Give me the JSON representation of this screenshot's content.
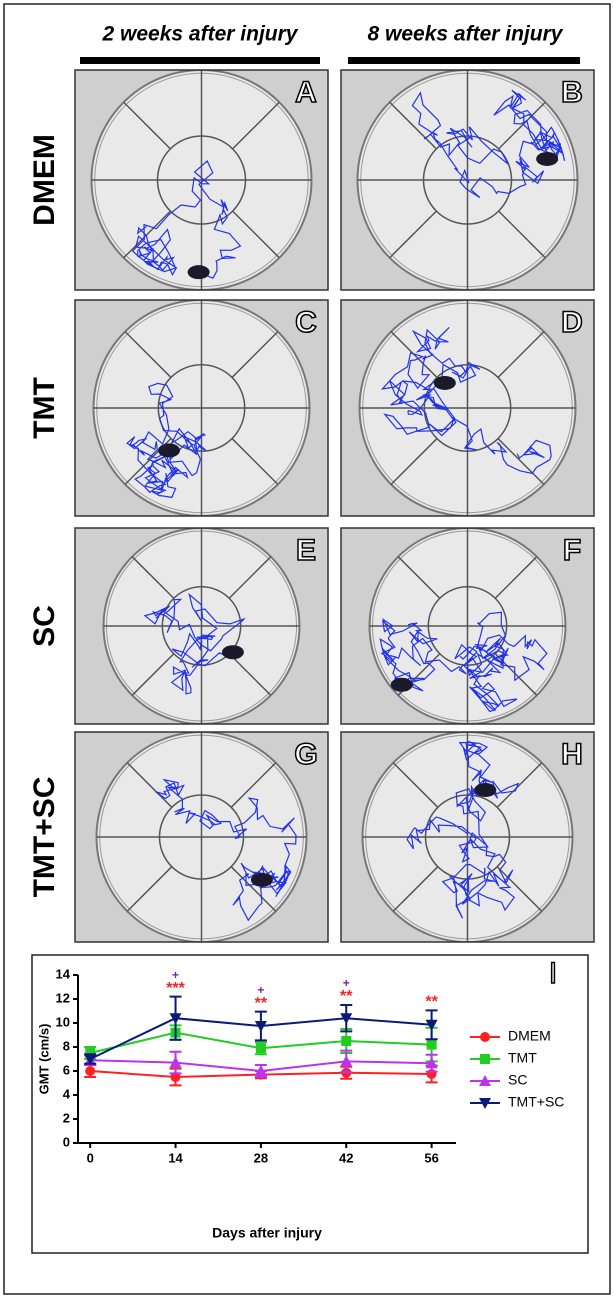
{
  "columns": [
    "2 weeks after injury",
    "8 weeks after injury"
  ],
  "rows": [
    "DMEM",
    "TMT",
    "SC",
    "TMT+SC"
  ],
  "panels": [
    "A",
    "B",
    "C",
    "D",
    "E",
    "F",
    "G",
    "H"
  ],
  "chart_data": {
    "type": "line",
    "panel_label": "I",
    "x_label": "Days after injury",
    "y_label": "GMT (cm/s)",
    "x": [
      0,
      14,
      28,
      42,
      56
    ],
    "xlim": [
      -2,
      60
    ],
    "xticks": [
      0,
      14,
      28,
      42,
      56
    ],
    "ylim": [
      0,
      14
    ],
    "yticks": [
      0,
      2,
      4,
      6,
      8,
      10,
      12,
      14
    ],
    "legend": "right",
    "series": [
      {
        "name": "DMEM",
        "color": "#ff2020",
        "marker": "circle",
        "values": [
          6.0,
          5.5,
          5.7,
          5.85,
          5.75
        ],
        "errors": [
          0.5,
          0.7,
          0.3,
          0.5,
          0.7
        ]
      },
      {
        "name": "TMT",
        "color": "#22cc22",
        "marker": "square",
        "values": [
          7.5,
          9.2,
          7.9,
          8.5,
          8.2
        ],
        "errors": [
          0.5,
          0.6,
          0.5,
          1.0,
          1.4
        ]
      },
      {
        "name": "SC",
        "color": "#bb33ee",
        "marker": "triangle-up",
        "values": [
          6.9,
          6.7,
          6.0,
          6.8,
          6.65
        ],
        "errors": [
          0.4,
          0.9,
          0.5,
          0.9,
          0.7
        ]
      },
      {
        "name": "TMT+SC",
        "color": "#0a1a7a",
        "marker": "triangle-down",
        "values": [
          7.0,
          10.4,
          9.75,
          10.4,
          9.85
        ],
        "errors": [
          0.4,
          1.8,
          1.2,
          1.1,
          1.2
        ]
      }
    ],
    "annotations": [
      {
        "x": 14,
        "text": "***",
        "color": "#ff2020"
      },
      {
        "x": 14,
        "text": "+",
        "color": "#7a22aa"
      },
      {
        "x": 28,
        "text": "**",
        "color": "#ff2020"
      },
      {
        "x": 28,
        "text": "+",
        "color": "#7a22aa"
      },
      {
        "x": 42,
        "text": "**",
        "color": "#ff2020"
      },
      {
        "x": 42,
        "text": "+",
        "color": "#7a22aa"
      },
      {
        "x": 56,
        "text": "**",
        "color": "#ff2020"
      }
    ]
  }
}
